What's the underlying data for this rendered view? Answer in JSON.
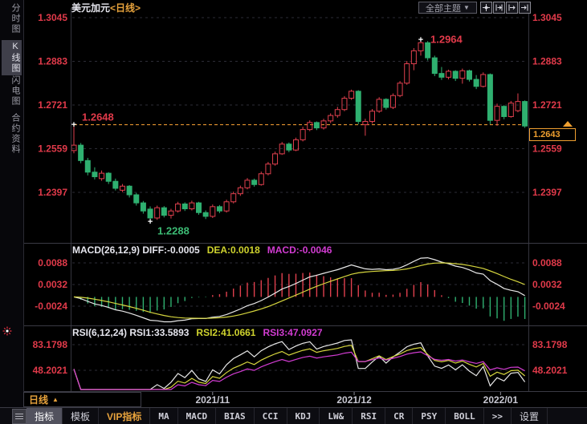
{
  "topbar": {
    "title_symbol": "美元加元",
    "title_period": "<日线>",
    "theme_dropdown": {
      "label": "全部主题",
      "arrow": "▼"
    }
  },
  "sidebar": {
    "tabs": [
      {
        "label": "分时图",
        "active": false
      },
      {
        "label": "K线图",
        "active": true
      },
      {
        "label": "闪电图",
        "active": false
      },
      {
        "label": "合约资料",
        "active": false
      }
    ]
  },
  "main_chart": {
    "y_axis_labels": [
      "1.3045",
      "1.2883",
      "1.2721",
      "1.2559",
      "1.2397"
    ],
    "open_line_label": "1.2648",
    "high_label": "1.2964",
    "low_label": "1.2288",
    "last_price": "1.2643",
    "x_axis_labels": [
      "2021/11",
      "2021/12",
      "2022/01"
    ],
    "period_label": "日线",
    "period_arrow": "▲"
  },
  "macd_panel": {
    "header_white": "MACD(26,12,9) DIFF:-0.0005",
    "header_yellow": "DEA:0.0018",
    "header_magenta": "MACD:-0.0046",
    "y_axis_labels": [
      "0.0088",
      "0.0032",
      "-0.0024"
    ]
  },
  "rsi_panel": {
    "header_white": "RSI(6,12,24) RSI1:33.5893",
    "header_yellow": "RSI2:41.0661",
    "header_magenta": "RSI3:47.0927",
    "y_axis_labels": [
      "83.1798",
      "48.2021"
    ]
  },
  "toolbar": {
    "items": [
      {
        "label": "指标",
        "active": true
      },
      {
        "label": "模板"
      },
      {
        "label": "VIP指标",
        "vip": true
      },
      {
        "label": "MA"
      },
      {
        "label": "MACD"
      },
      {
        "label": "BIAS"
      },
      {
        "label": "CCI"
      },
      {
        "label": "KDJ"
      },
      {
        "label": "LW&"
      },
      {
        "label": "RSI"
      },
      {
        "label": "CR"
      },
      {
        "label": "PSY"
      },
      {
        "label": "BOLL"
      },
      {
        "label": ">>"
      },
      {
        "label": "设置"
      }
    ]
  },
  "chart_data": {
    "type": "candlestick",
    "title": "美元加元<日线>",
    "period": "日线",
    "price_ticks": [
      1.3045,
      1.2883,
      1.2721,
      1.2559,
      1.2397
    ],
    "x_ticks": [
      {
        "label": "2021/11",
        "index": 20
      },
      {
        "label": "2021/12",
        "index": 40.4
      },
      {
        "label": "2022/01",
        "index": 61.5
      }
    ],
    "open_line": {
      "price": 1.2648,
      "label": "1.2648"
    },
    "high_point": {
      "index": 50,
      "price": 1.2964,
      "label": "1.2964"
    },
    "low_point": {
      "index": 11,
      "price": 1.2288,
      "label": "1.2288"
    },
    "last_price": 1.2643,
    "candles": [
      [
        1.2552,
        1.2648,
        1.2542,
        1.2572
      ],
      [
        1.2572,
        1.258,
        1.2505,
        1.2515
      ],
      [
        1.2515,
        1.2525,
        1.246,
        1.2472
      ],
      [
        1.2472,
        1.249,
        1.2445,
        1.2455
      ],
      [
        1.2448,
        1.2478,
        1.244,
        1.2468
      ],
      [
        1.2468,
        1.2472,
        1.2428,
        1.2438
      ],
      [
        1.2438,
        1.2448,
        1.2404,
        1.2412
      ],
      [
        1.2405,
        1.2428,
        1.2398,
        1.242
      ],
      [
        1.242,
        1.2424,
        1.2378,
        1.2388
      ],
      [
        1.2388,
        1.2395,
        1.2348,
        1.2358
      ],
      [
        1.2358,
        1.2365,
        1.2318,
        1.2328
      ],
      [
        1.2335,
        1.2345,
        1.2288,
        1.2302
      ],
      [
        1.2302,
        1.2348,
        1.2295,
        1.234
      ],
      [
        1.234,
        1.2346,
        1.2304,
        1.2312
      ],
      [
        1.2312,
        1.2336,
        1.23,
        1.2328
      ],
      [
        1.2328,
        1.2362,
        1.2322,
        1.2354
      ],
      [
        1.2354,
        1.236,
        1.2328,
        1.2336
      ],
      [
        1.2336,
        1.2366,
        1.233,
        1.2358
      ],
      [
        1.2358,
        1.2362,
        1.2314,
        1.2322
      ],
      [
        1.2322,
        1.233,
        1.2298,
        1.2308
      ],
      [
        1.2308,
        1.2352,
        1.2302,
        1.2344
      ],
      [
        1.2344,
        1.235,
        1.232,
        1.2328
      ],
      [
        1.2328,
        1.237,
        1.2322,
        1.2362
      ],
      [
        1.2362,
        1.24,
        1.2356,
        1.2392
      ],
      [
        1.2392,
        1.2422,
        1.2384,
        1.2414
      ],
      [
        1.2414,
        1.245,
        1.2408,
        1.2442
      ],
      [
        1.2442,
        1.2448,
        1.2418,
        1.2426
      ],
      [
        1.2426,
        1.2474,
        1.2422,
        1.2466
      ],
      [
        1.2466,
        1.251,
        1.246,
        1.2502
      ],
      [
        1.2502,
        1.2548,
        1.2496,
        1.254
      ],
      [
        1.254,
        1.2584,
        1.2536,
        1.2576
      ],
      [
        1.2576,
        1.2582,
        1.2546,
        1.2554
      ],
      [
        1.2554,
        1.26,
        1.255,
        1.2592
      ],
      [
        1.2592,
        1.264,
        1.2586,
        1.263
      ],
      [
        1.263,
        1.2664,
        1.2624,
        1.2656
      ],
      [
        1.2656,
        1.266,
        1.2628,
        1.2636
      ],
      [
        1.2636,
        1.267,
        1.263,
        1.2662
      ],
      [
        1.2662,
        1.269,
        1.2654,
        1.2682
      ],
      [
        1.2682,
        1.2714,
        1.2674,
        1.2704
      ],
      [
        1.2704,
        1.2754,
        1.2698,
        1.2746
      ],
      [
        1.2746,
        1.2778,
        1.274,
        1.2772
      ],
      [
        1.2772,
        1.2776,
        1.265,
        1.266
      ],
      [
        1.2648,
        1.267,
        1.2607,
        1.266
      ],
      [
        1.266,
        1.2706,
        1.2652,
        1.2698
      ],
      [
        1.2698,
        1.275,
        1.2692,
        1.2742
      ],
      [
        1.2742,
        1.2746,
        1.2704,
        1.2712
      ],
      [
        1.2712,
        1.2764,
        1.2706,
        1.2756
      ],
      [
        1.2756,
        1.281,
        1.275,
        1.2802
      ],
      [
        1.2802,
        1.2884,
        1.2796,
        1.2874
      ],
      [
        1.2874,
        1.2932,
        1.285,
        1.2922
      ],
      [
        1.2922,
        1.2964,
        1.2904,
        1.2952
      ],
      [
        1.2952,
        1.2958,
        1.2886,
        1.2896
      ],
      [
        1.2896,
        1.2904,
        1.2828,
        1.2838
      ],
      [
        1.2838,
        1.2862,
        1.2814,
        1.2824
      ],
      [
        1.2824,
        1.2852,
        1.2816,
        1.2846
      ],
      [
        1.2846,
        1.285,
        1.281,
        1.282
      ],
      [
        1.282,
        1.2856,
        1.28,
        1.2848
      ],
      [
        1.2848,
        1.2852,
        1.2808,
        1.2816
      ],
      [
        1.2816,
        1.2832,
        1.278,
        1.279
      ],
      [
        1.279,
        1.2842,
        1.2786,
        1.2834
      ],
      [
        1.2834,
        1.2838,
        1.265,
        1.2664
      ],
      [
        1.2664,
        1.2726,
        1.2644,
        1.2716
      ],
      [
        1.2716,
        1.272,
        1.2668,
        1.2678
      ],
      [
        1.2678,
        1.2736,
        1.2674,
        1.2728
      ],
      [
        1.27,
        1.2764,
        1.2694,
        1.2734
      ],
      [
        1.2734,
        1.2738,
        1.2636,
        1.2643
      ]
    ],
    "macd": {
      "params": [
        26,
        12,
        9
      ],
      "diff": -0.0005,
      "dea": 0.0018,
      "macd": -0.0046,
      "ticks": [
        0.0088,
        0.0032,
        -0.0024
      ]
    },
    "rsi": {
      "params": [
        6,
        12,
        24
      ],
      "rsi1": 33.5893,
      "rsi2": 41.0661,
      "rsi3": 47.0927,
      "ticks": [
        83.1798,
        48.2021
      ]
    },
    "colors": {
      "up": "#e0404e",
      "down": "#2fb070",
      "diff_line": "#e8e8e8",
      "dea_line": "#d6d63e",
      "macd_pos": "#e0404e",
      "macd_neg": "#2fb070",
      "rsi1": "#e8e8e8",
      "rsi2": "#d6d63e",
      "rsi3": "#d23cd2",
      "axis_text": "#e13a4a",
      "date_text": "#c8c8d2",
      "grid": "#2c2c36",
      "open_line": "#e2932e",
      "last_price": "#f0a030",
      "marker": "#ffffff",
      "border": "#34343e"
    }
  }
}
